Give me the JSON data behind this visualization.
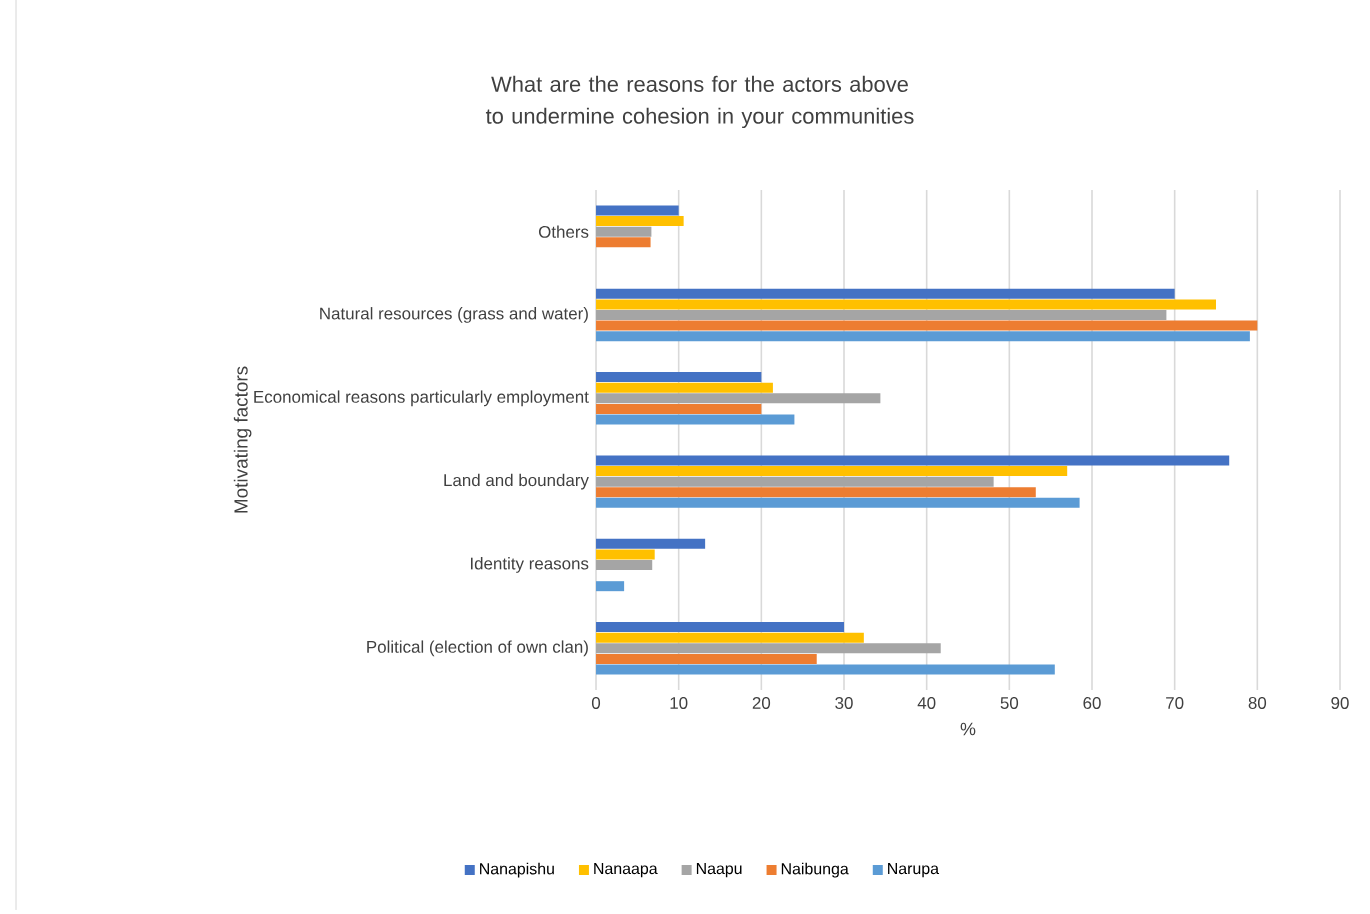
{
  "chart_data": {
    "type": "bar",
    "orientation": "horizontal",
    "title": "What are the reasons for the actors above to undermine cohesion in your communities",
    "xlabel": "%",
    "ylabel": "Motivating factors",
    "categories": [
      "Others",
      "Natural resources (grass and water)",
      "Economical reasons particularly employment",
      "Land and boundary",
      "Identity reasons",
      "Political (election of own clan)"
    ],
    "series": [
      {
        "name": "Nanapishu",
        "color": "#4472c4",
        "values": [
          10,
          70,
          20,
          76.6,
          13.2,
          30
        ]
      },
      {
        "name": "Nanaapa",
        "color": "#ffc000",
        "values": [
          10.6,
          75,
          21.4,
          57,
          7.1,
          32.4
        ]
      },
      {
        "name": "Naapu",
        "color": "#a5a5a5",
        "values": [
          6.7,
          69,
          34.4,
          48.1,
          6.8,
          41.7
        ]
      },
      {
        "name": "Naibunga",
        "color": "#ed7d31",
        "values": [
          6.6,
          80,
          20,
          53.2,
          0,
          26.7
        ]
      },
      {
        "name": "Narupa",
        "color": "#5b9bd5",
        "values": [
          0,
          79.1,
          24,
          58.5,
          3.4,
          55.5
        ]
      }
    ],
    "xlim": [
      0,
      90
    ],
    "xticks": [
      0,
      10,
      20,
      30,
      40,
      50,
      60,
      70,
      80,
      90
    ],
    "grid": "x",
    "legend": "bottom"
  }
}
